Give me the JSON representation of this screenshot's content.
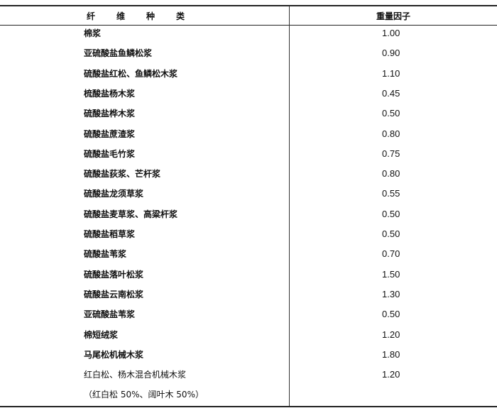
{
  "table": {
    "headers": [
      "纤　　维　　种　　类",
      "重量因子"
    ],
    "rows": [
      {
        "name": "棉浆",
        "value": "1.00"
      },
      {
        "name": "亚硫酸盐鱼鳞松浆",
        "value": "0.90"
      },
      {
        "name": "硫酸盐红松、鱼鳞松木浆",
        "value": "1.10"
      },
      {
        "name": "梳酸盐杨木浆",
        "value": "0.45"
      },
      {
        "name": "硫酸盐桦木浆",
        "value": "0.50"
      },
      {
        "name": "硫酸盐蔗渣浆",
        "value": "0.80"
      },
      {
        "name": "硫酸盐毛竹浆",
        "value": "0.75"
      },
      {
        "name": "硫酸盐荻浆、芒杆浆",
        "value": "0.80"
      },
      {
        "name": "硫酸盐龙须草浆",
        "value": "0.55"
      },
      {
        "name": "硫酸盐麦草浆、高粱杆浆",
        "value": "0.50"
      },
      {
        "name": "硫酸盐稻草浆",
        "value": "0.50"
      },
      {
        "name": "硫酸盐苇浆",
        "value": "0.70"
      },
      {
        "name": "硫酸盐落叶松浆",
        "value": "1.50"
      },
      {
        "name": "硫酸盐云南松浆",
        "value": "1.30"
      },
      {
        "name": "亚硫酸盐苇浆",
        "value": "0.50"
      },
      {
        "name": "棉短绒浆",
        "value": "1.20"
      },
      {
        "name": "马尾松机械木浆",
        "value": "1.80"
      },
      {
        "name": "红白松、杨木混合机械木浆",
        "value": "1.20"
      },
      {
        "name": "（红白松 50%、阔叶木 50%）",
        "value": ""
      }
    ]
  }
}
